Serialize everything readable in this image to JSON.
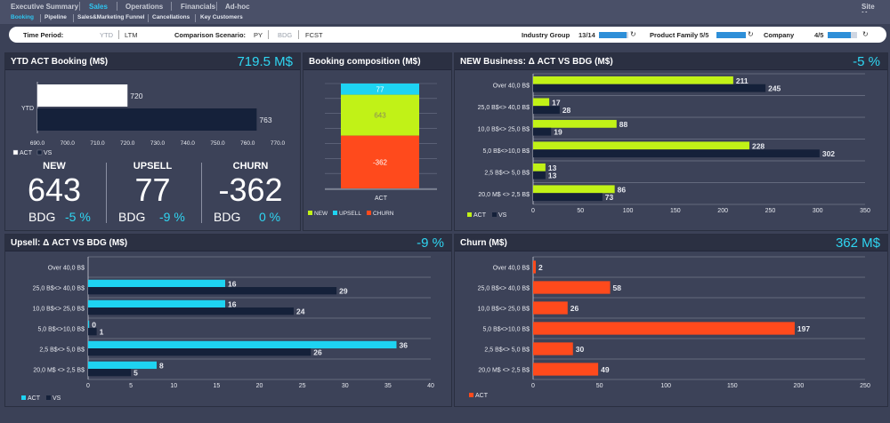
{
  "nav": {
    "tabs": [
      "Executive Summary",
      "Sales",
      "Operations",
      "Financials",
      "Ad-hoc"
    ],
    "active_tab": "Sales",
    "site_map": "Site Map",
    "subtabs": [
      "Booking",
      "Pipeline",
      "Sales&Marketing Funnel",
      "Cancellations",
      "Key Customers"
    ],
    "active_subtab": "Booking"
  },
  "filters": {
    "time_period_label": "Time Period:",
    "time_period_options": [
      "YTD",
      "LTM"
    ],
    "comparison_label": "Comparison Scenario:",
    "comparison_options": [
      "PY",
      "BDG",
      "FCST"
    ],
    "industry_group_label": "Industry Group",
    "industry_group_count": "13/14",
    "industry_group_fill": 0.93,
    "product_family_label": "Product Family",
    "product_family_count": "5/5",
    "product_family_fill": 1.0,
    "company_label": "Company",
    "company_count": "4/5",
    "company_fill": 0.8
  },
  "colors": {
    "green": "#c1f217",
    "cyan": "#1ed3f2",
    "navy": "#15213a",
    "orange": "#ff4a1c",
    "white": "#ffffff",
    "accent": "#2fd6f2"
  },
  "ytd": {
    "title": "YTD ACT Booking (M$)",
    "value": "719.5 M$",
    "chart": {
      "type": "bar",
      "orientation": "horizontal",
      "category": "YTD",
      "xlim": [
        690,
        770
      ],
      "ticks": [
        690,
        700,
        710,
        720,
        730,
        740,
        750,
        760,
        770
      ],
      "tick_labels": [
        "690.0",
        "700.0",
        "710.0",
        "720.0",
        "730.0",
        "740.0",
        "750.0",
        "760.0",
        "770.0"
      ],
      "series": [
        {
          "name": "ACT",
          "value": 720,
          "label": "720"
        },
        {
          "name": "VS",
          "value": 763,
          "label": "763"
        }
      ],
      "legend": [
        "ACT",
        "VS"
      ]
    },
    "kpis": [
      {
        "title": "NEW",
        "value": "643",
        "bdg": "BDG",
        "delta": "-5 %"
      },
      {
        "title": "UPSELL",
        "value": "77",
        "bdg": "BDG",
        "delta": "-9 %"
      },
      {
        "title": "CHURN",
        "value": "-362",
        "bdg": "BDG",
        "delta": "0 %"
      }
    ]
  },
  "composition": {
    "title": "Booking composition (M$)",
    "chart_data": {
      "type": "bar",
      "stacked": true,
      "category": "ACT",
      "series": [
        {
          "name": "NEW",
          "value": 643,
          "label": "643"
        },
        {
          "name": "UPSELL",
          "value": 77,
          "label": "77"
        },
        {
          "name": "CHURN",
          "value": -362,
          "label": "-362"
        }
      ],
      "legend": [
        "NEW",
        "UPSELL",
        "CHURN"
      ]
    }
  },
  "newbiz": {
    "title": "NEW Business: Δ ACT VS BDG (M$)",
    "value": "-5 %",
    "chart_data": {
      "type": "bar",
      "orientation": "horizontal",
      "categories": [
        "Over 40,0 B$",
        "25,0 B$<> 40,0 B$",
        "10,0 B$<> 25,0 B$",
        "5,0 B$<>10,0 B$",
        "2,5 B$<> 5,0 B$",
        "20,0 M$ <> 2,5 B$"
      ],
      "xlim": [
        0,
        350
      ],
      "ticks": [
        0,
        50,
        100,
        150,
        200,
        250,
        300,
        350
      ],
      "series": [
        {
          "name": "ACT",
          "values": [
            211,
            17,
            88,
            228,
            13,
            86
          ]
        },
        {
          "name": "VS",
          "values": [
            245,
            28,
            19,
            302,
            13,
            73
          ]
        }
      ],
      "legend": [
        "ACT",
        "VS"
      ]
    }
  },
  "upsell": {
    "title": "Upsell: Δ ACT VS BDG (M$)",
    "value": "-9 %",
    "chart_data": {
      "type": "bar",
      "orientation": "horizontal",
      "categories": [
        "Over 40,0 B$",
        "25,0 B$<> 40,0 B$",
        "10,0 B$<> 25,0 B$",
        "5,0 B$<>10,0 B$",
        "2,5 B$<> 5,0 B$",
        "20,0 M$ <> 2,5 B$"
      ],
      "xlim": [
        0,
        40
      ],
      "ticks": [
        0,
        5,
        10,
        15,
        20,
        25,
        30,
        35,
        40
      ],
      "series": [
        {
          "name": "ACT",
          "values": [
            null,
            16,
            16,
            0,
            36,
            8
          ]
        },
        {
          "name": "VS",
          "values": [
            null,
            29,
            24,
            1,
            26,
            5
          ]
        }
      ],
      "legend": [
        "ACT",
        "VS"
      ]
    }
  },
  "churn": {
    "title": "Churn (M$)",
    "value": "362 M$",
    "chart_data": {
      "type": "bar",
      "orientation": "horizontal",
      "categories": [
        "Over 40,0 B$",
        "25,0 B$<> 40,0 B$",
        "10,0 B$<> 25,0 B$",
        "5,0 B$<>10,0 B$",
        "2,5 B$<> 5,0 B$",
        "20,0 M$ <> 2,5 B$"
      ],
      "xlim": [
        0,
        250
      ],
      "ticks": [
        0,
        50,
        100,
        150,
        200,
        250
      ],
      "series": [
        {
          "name": "ACT",
          "values": [
            2,
            58,
            26,
            197,
            30,
            49
          ]
        }
      ],
      "legend": [
        "ACT"
      ]
    }
  }
}
